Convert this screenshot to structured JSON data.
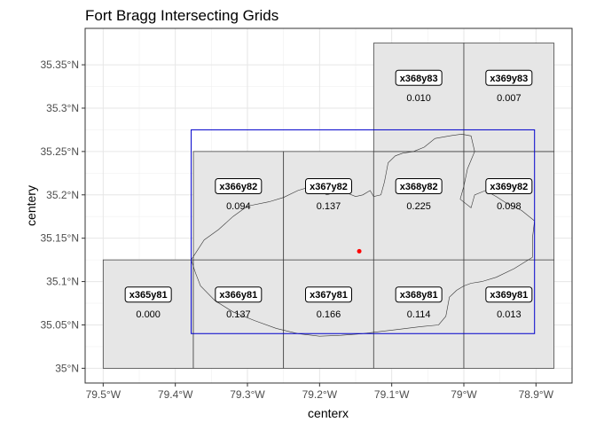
{
  "chart_data": {
    "type": "map",
    "title": "Fort Bragg Intersecting Grids",
    "xlabel": "centerx",
    "ylabel": "centery",
    "xlim": [
      -79.525,
      -78.85
    ],
    "ylim": [
      34.983,
      35.392
    ],
    "x_ticks": [
      {
        "value": -79.5,
        "label": "79.5°W"
      },
      {
        "value": -79.4,
        "label": "79.4°W"
      },
      {
        "value": -79.3,
        "label": "79.3°W"
      },
      {
        "value": -79.2,
        "label": "79.2°W"
      },
      {
        "value": -79.1,
        "label": "79.1°W"
      },
      {
        "value": -79.0,
        "label": "79°W"
      },
      {
        "value": -78.9,
        "label": "78.9°W"
      }
    ],
    "y_ticks": [
      {
        "value": 35.0,
        "label": "35°N"
      },
      {
        "value": 35.05,
        "label": "35.05°N"
      },
      {
        "value": 35.1,
        "label": "35.1°N"
      },
      {
        "value": 35.15,
        "label": "35.15°N"
      },
      {
        "value": 35.2,
        "label": "35.2°N"
      },
      {
        "value": 35.25,
        "label": "35.25°N"
      },
      {
        "value": 35.3,
        "label": "35.3°N"
      },
      {
        "value": 35.35,
        "label": "35.35°N"
      }
    ],
    "grid": true,
    "cells": [
      {
        "name": "x365y81",
        "xmin": -79.5,
        "xmax": -79.375,
        "ymin": 35.0,
        "ymax": 35.125,
        "value": "0.000"
      },
      {
        "name": "x366y81",
        "xmin": -79.375,
        "xmax": -79.25,
        "ymin": 35.0,
        "ymax": 35.125,
        "value": "0.137"
      },
      {
        "name": "x367y81",
        "xmin": -79.25,
        "xmax": -79.125,
        "ymin": 35.0,
        "ymax": 35.125,
        "value": "0.166"
      },
      {
        "name": "x368y81",
        "xmin": -79.125,
        "xmax": -79.0,
        "ymin": 35.0,
        "ymax": 35.125,
        "value": "0.114"
      },
      {
        "name": "x369y81",
        "xmin": -79.0,
        "xmax": -78.875,
        "ymin": 35.0,
        "ymax": 35.125,
        "value": "0.013"
      },
      {
        "name": "x366y82",
        "xmin": -79.375,
        "xmax": -79.25,
        "ymin": 35.125,
        "ymax": 35.25,
        "value": "0.094"
      },
      {
        "name": "x367y82",
        "xmin": -79.25,
        "xmax": -79.125,
        "ymin": 35.125,
        "ymax": 35.25,
        "value": "0.137"
      },
      {
        "name": "x368y82",
        "xmin": -79.125,
        "xmax": -79.0,
        "ymin": 35.125,
        "ymax": 35.25,
        "value": "0.225"
      },
      {
        "name": "x369y82",
        "xmin": -79.0,
        "xmax": -78.875,
        "ymin": 35.125,
        "ymax": 35.25,
        "value": "0.098"
      },
      {
        "name": "x368y83",
        "xmin": -79.125,
        "xmax": -79.0,
        "ymin": 35.25,
        "ymax": 35.375,
        "value": "0.010"
      },
      {
        "name": "x369y83",
        "xmin": -79.0,
        "xmax": -78.875,
        "ymin": 35.25,
        "ymax": 35.375,
        "value": "0.007"
      }
    ],
    "bounding_box": {
      "xmin": -79.378,
      "xmax": -78.902,
      "ymin": 35.04,
      "ymax": 35.275,
      "color": "#0000cc"
    },
    "center_point": {
      "x": -79.145,
      "y": 35.135,
      "color": "#ff0000"
    },
    "boundary": [
      [
        -79.378,
        35.125
      ],
      [
        -79.36,
        35.148
      ],
      [
        -79.34,
        35.16
      ],
      [
        -79.32,
        35.175
      ],
      [
        -79.3,
        35.187
      ],
      [
        -79.27,
        35.192
      ],
      [
        -79.25,
        35.197
      ],
      [
        -79.23,
        35.205
      ],
      [
        -79.21,
        35.21
      ],
      [
        -79.19,
        35.2
      ],
      [
        -79.17,
        35.205
      ],
      [
        -79.15,
        35.198
      ],
      [
        -79.14,
        35.2
      ],
      [
        -79.13,
        35.205
      ],
      [
        -79.125,
        35.198
      ],
      [
        -79.115,
        35.2
      ],
      [
        -79.11,
        35.215
      ],
      [
        -79.105,
        35.237
      ],
      [
        -79.095,
        35.245
      ],
      [
        -79.085,
        35.248
      ],
      [
        -79.07,
        35.25
      ],
      [
        -79.055,
        35.255
      ],
      [
        -79.04,
        35.265
      ],
      [
        -79.02,
        35.268
      ],
      [
        -79.003,
        35.27
      ],
      [
        -78.99,
        35.268
      ],
      [
        -78.985,
        35.25
      ],
      [
        -78.995,
        35.23
      ],
      [
        -79.0,
        35.21
      ],
      [
        -79.005,
        35.195
      ],
      [
        -78.99,
        35.185
      ],
      [
        -78.985,
        35.2
      ],
      [
        -78.97,
        35.205
      ],
      [
        -78.955,
        35.198
      ],
      [
        -78.94,
        35.19
      ],
      [
        -78.92,
        35.182
      ],
      [
        -78.902,
        35.17
      ],
      [
        -78.905,
        35.15
      ],
      [
        -78.905,
        35.128
      ],
      [
        -78.93,
        35.115
      ],
      [
        -78.955,
        35.105
      ],
      [
        -78.975,
        35.1
      ],
      [
        -78.99,
        35.098
      ],
      [
        -79.0,
        35.095
      ],
      [
        -79.01,
        35.09
      ],
      [
        -79.02,
        35.082
      ],
      [
        -79.025,
        35.06
      ],
      [
        -79.035,
        35.05
      ],
      [
        -79.06,
        35.048
      ],
      [
        -79.09,
        35.045
      ],
      [
        -79.12,
        35.042
      ],
      [
        -79.14,
        35.04
      ],
      [
        -79.17,
        35.038
      ],
      [
        -79.2,
        35.037
      ],
      [
        -79.23,
        35.04
      ],
      [
        -79.26,
        35.046
      ],
      [
        -79.29,
        35.055
      ],
      [
        -79.32,
        35.065
      ],
      [
        -79.345,
        35.078
      ],
      [
        -79.365,
        35.095
      ],
      [
        -79.372,
        35.11
      ],
      [
        -79.378,
        35.125
      ]
    ]
  }
}
